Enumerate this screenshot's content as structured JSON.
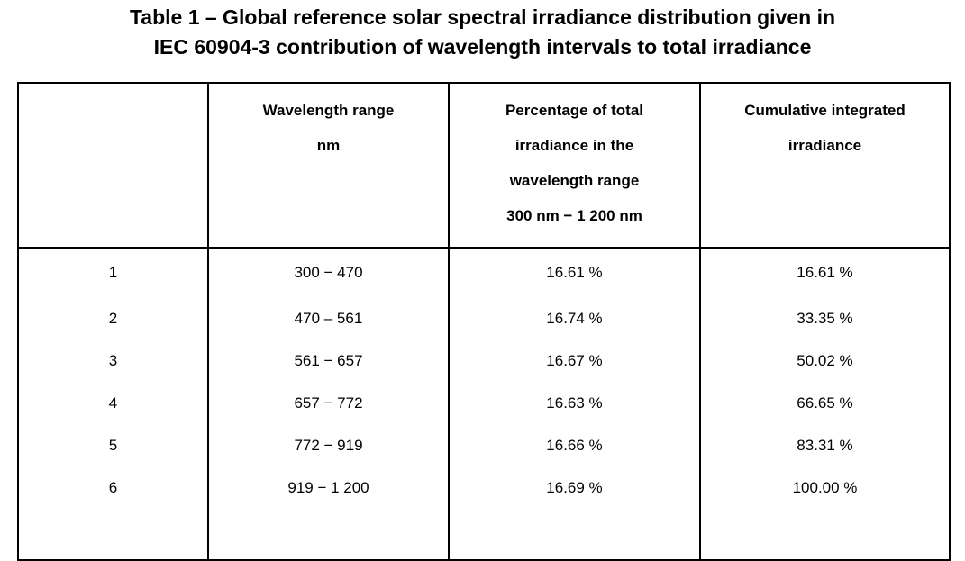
{
  "page": {
    "background": "#ffffff",
    "text_color": "#000000",
    "border_color": "#000000"
  },
  "caption": {
    "line1": "Table 1 – Global reference solar spectral irradiance distribution given in",
    "line2": "IEC 60904-3 contribution of wavelength intervals to total irradiance"
  },
  "table": {
    "columns": [
      {
        "name": "row-number",
        "lines": [
          ""
        ]
      },
      {
        "name": "wavelength-range",
        "lines": [
          "Wavelength range",
          "nm"
        ]
      },
      {
        "name": "percentage-of-total",
        "lines": [
          "Percentage of total",
          "irradiance in the",
          "wavelength range",
          "300 nm − 1 200 nm"
        ]
      },
      {
        "name": "cumulative-integrated",
        "lines": [
          "Cumulative integrated",
          "irradiance"
        ]
      }
    ],
    "rows": [
      {
        "num": "1",
        "range": "300 − 470",
        "percent": "16.61 %",
        "cumulative": "16.61 %"
      },
      {
        "num": "2",
        "range": "470 – 561",
        "percent": "16.74 %",
        "cumulative": "33.35 %"
      },
      {
        "num": "3",
        "range": "561 − 657",
        "percent": "16.67 %",
        "cumulative": "50.02 %"
      },
      {
        "num": "4",
        "range": "657 − 772",
        "percent": "16.63 %",
        "cumulative": "66.65 %"
      },
      {
        "num": "5",
        "range": "772 − 919",
        "percent": "16.66 %",
        "cumulative": "83.31 %"
      },
      {
        "num": "6",
        "range": "919 − 1 200",
        "percent": "16.69 %",
        "cumulative": "100.00 %"
      }
    ]
  }
}
